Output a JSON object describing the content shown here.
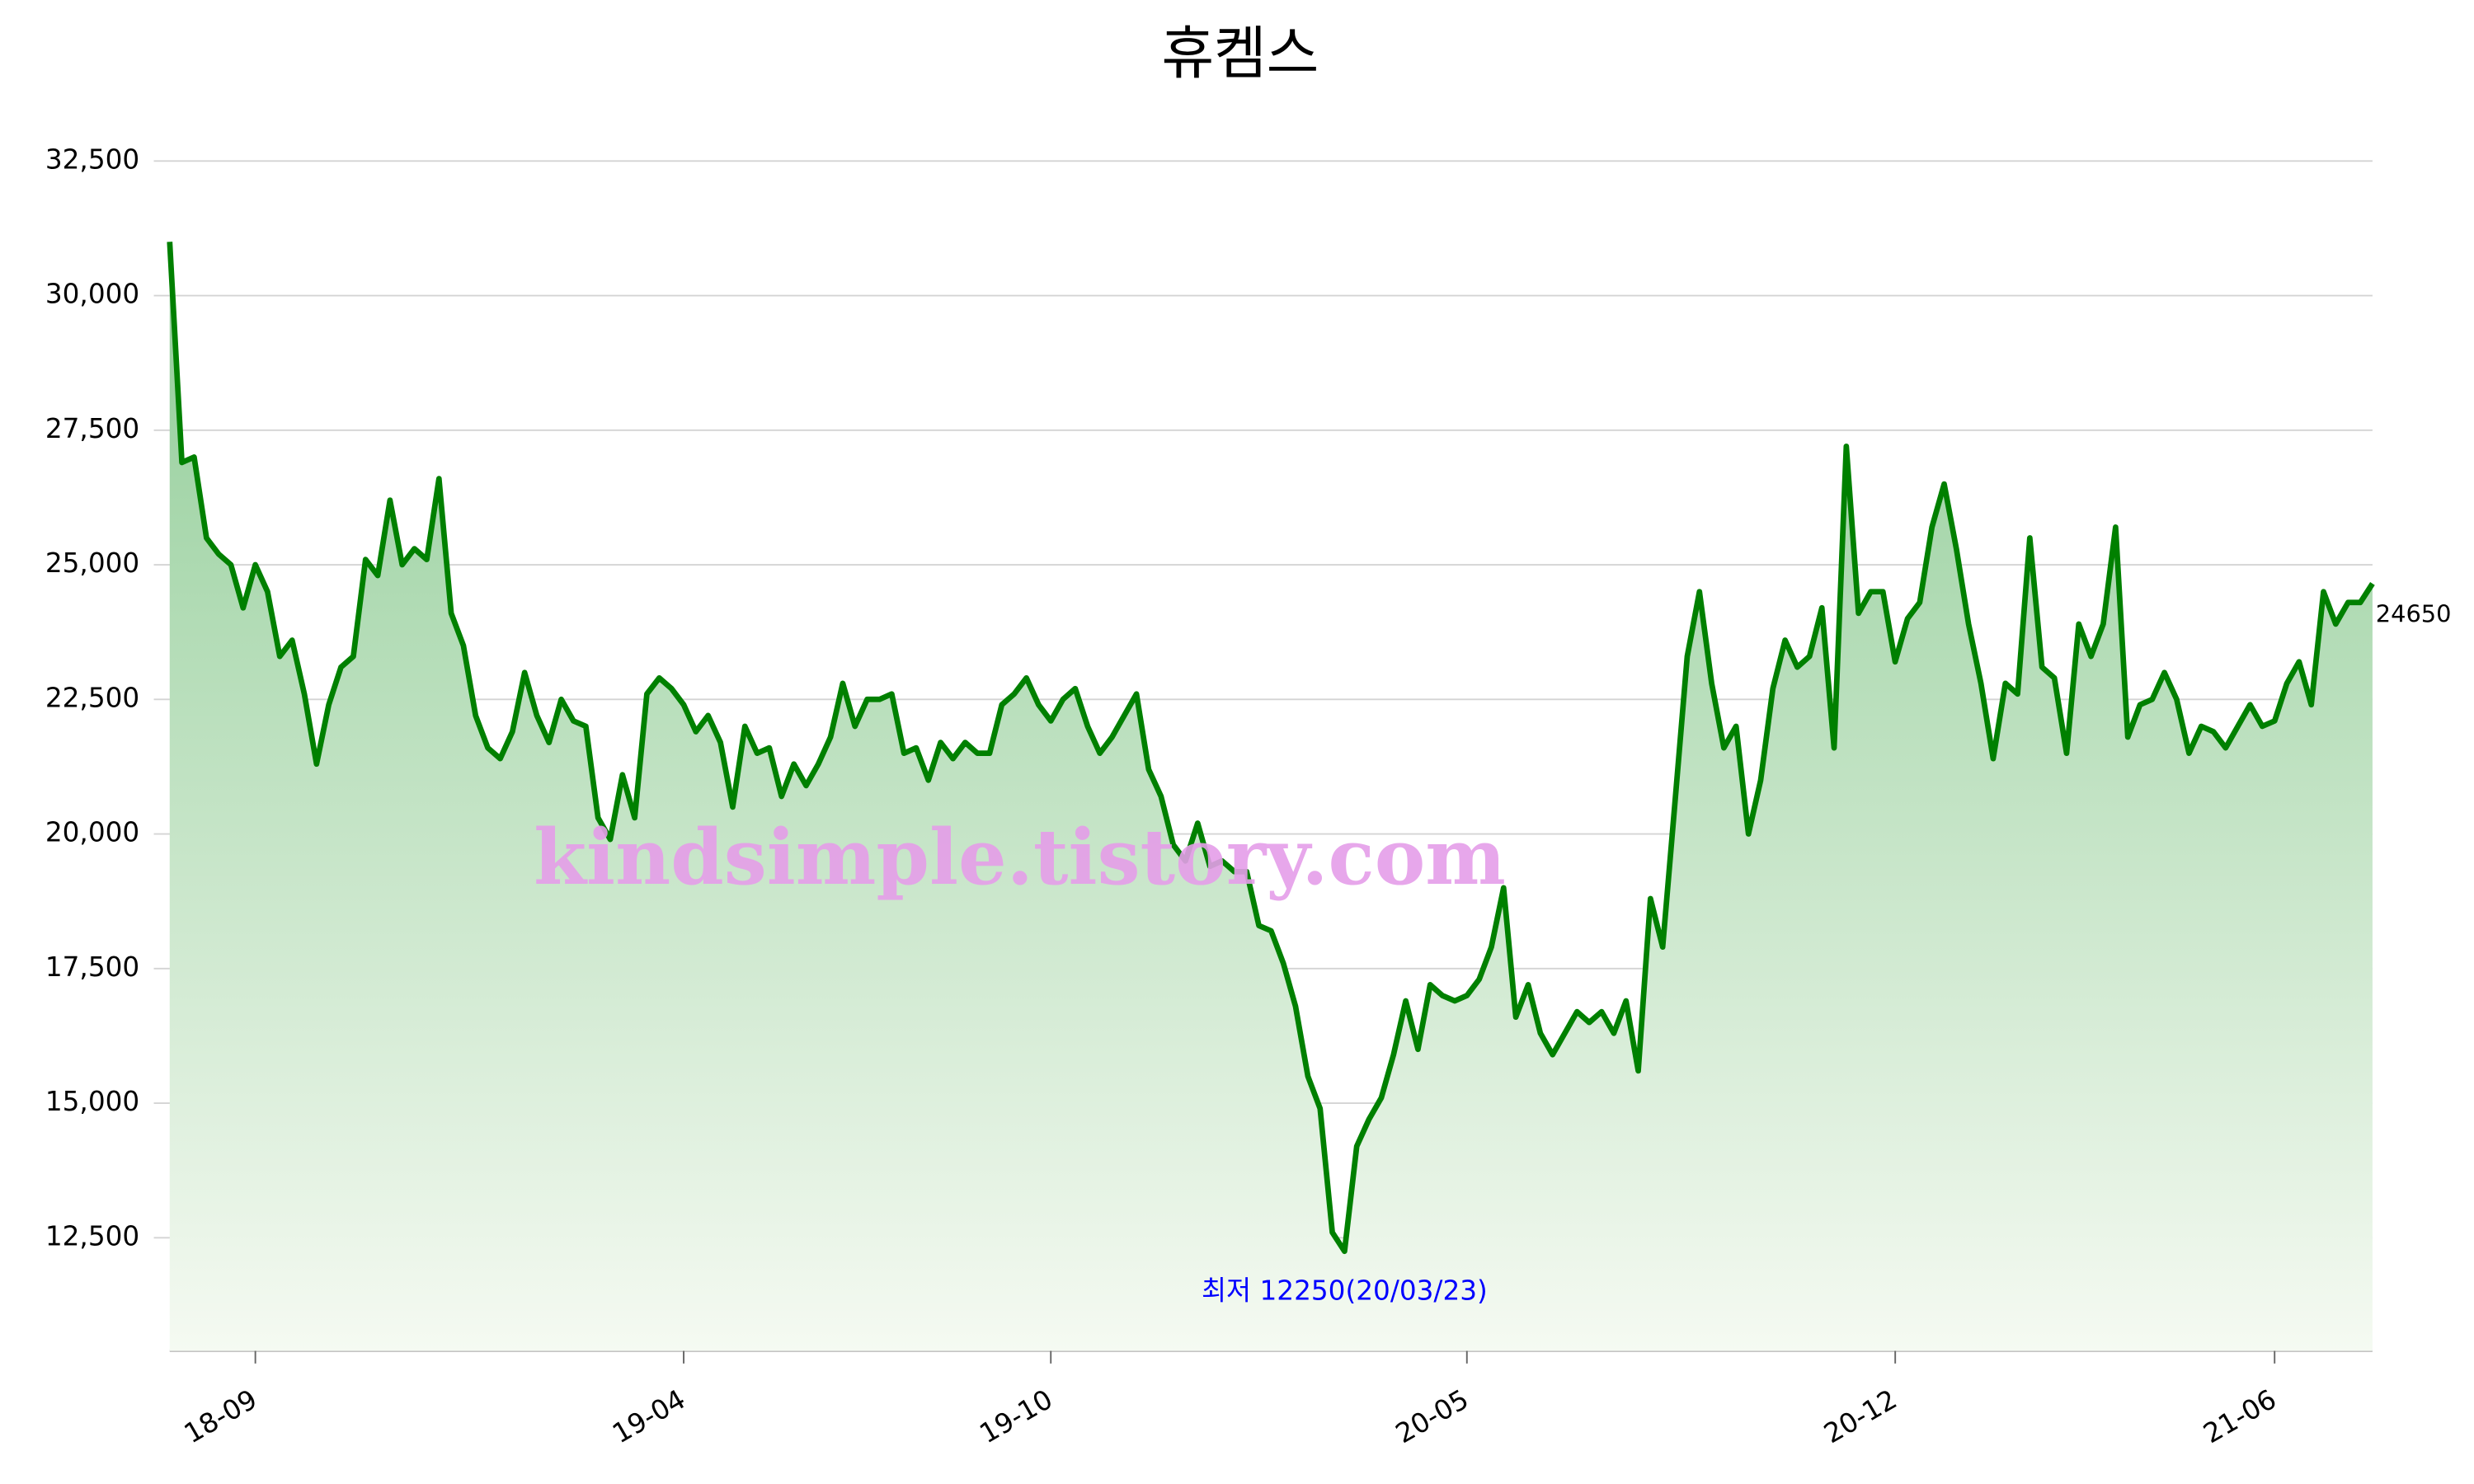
{
  "chart_data": {
    "type": "line",
    "title": "휴켐스",
    "x": [
      "18-08",
      "18-08",
      "18-08",
      "18-08",
      "18-08",
      "18-08",
      "18-08",
      "18-09",
      "18-09",
      "18-09",
      "18-09",
      "18-09",
      "18-10",
      "18-10",
      "18-10",
      "18-10",
      "18-10",
      "18-11",
      "18-11",
      "18-11",
      "18-11",
      "18-11",
      "18-12",
      "18-12",
      "18-12",
      "18-12",
      "18-12",
      "18-12",
      "19-01",
      "19-01",
      "19-01",
      "19-01",
      "19-02",
      "19-02",
      "19-02",
      "19-02",
      "19-02",
      "19-02",
      "19-03",
      "19-03",
      "19-03",
      "19-03",
      "19-04",
      "19-04",
      "19-04",
      "19-04",
      "19-04",
      "19-04",
      "19-05",
      "19-05",
      "19-05",
      "19-05",
      "19-05",
      "19-06",
      "19-06",
      "19-06",
      "19-06",
      "19-06",
      "19-07",
      "19-07",
      "19-07",
      "19-07",
      "19-08",
      "19-08",
      "19-08",
      "19-08",
      "19-09",
      "19-09",
      "19-09",
      "19-09",
      "19-09",
      "19-09",
      "19-10",
      "19-10",
      "19-10",
      "19-10",
      "19-11",
      "19-11",
      "19-11",
      "19-11",
      "19-12",
      "19-12",
      "19-12",
      "19-12",
      "19-12",
      "20-01",
      "20-01",
      "20-01",
      "20-01",
      "20-02",
      "20-02",
      "20-02",
      "20-02",
      "20-02",
      "20-02",
      "20-02",
      "20-03",
      "20-03",
      "20-03",
      "20-03",
      "20-03",
      "20-03",
      "20-04",
      "20-04",
      "20-04",
      "20-04",
      "20-05",
      "20-05",
      "20-05",
      "20-05",
      "20-06",
      "20-06",
      "20-06",
      "20-06",
      "20-07",
      "20-07",
      "20-07",
      "20-07",
      "20-07",
      "20-08",
      "20-08",
      "20-08",
      "20-08",
      "20-08",
      "20-08",
      "20-09",
      "20-09",
      "20-09",
      "20-09",
      "20-09",
      "20-09",
      "20-09",
      "20-10",
      "20-10",
      "20-10",
      "20-10",
      "20-10",
      "20-11",
      "20-11",
      "20-11",
      "20-11",
      "20-12",
      "20-12",
      "20-12",
      "20-12",
      "20-12",
      "21-01",
      "21-01",
      "21-01",
      "21-01",
      "21-01",
      "21-02",
      "21-02",
      "21-02",
      "21-02",
      "21-02",
      "21-02",
      "21-03",
      "21-03",
      "21-03",
      "21-03",
      "21-03",
      "21-04",
      "21-04",
      "21-04",
      "21-04",
      "21-04",
      "21-04",
      "21-05",
      "21-05",
      "21-05",
      "21-05",
      "21-06",
      "21-06",
      "21-06",
      "21-06",
      "21-06",
      "21-06",
      "21-06",
      "21-07",
      "21-07"
    ],
    "series": [
      {
        "color": "#008000",
        "values": [
          31000,
          26900,
          27000,
          25500,
          25200,
          25000,
          24200,
          25000,
          24500,
          23300,
          23600,
          22600,
          21300,
          22400,
          23100,
          23300,
          25100,
          24800,
          26200,
          25000,
          25300,
          25100,
          26600,
          24100,
          23500,
          22200,
          21600,
          21400,
          21900,
          23000,
          22200,
          21700,
          22500,
          22100,
          22000,
          20300,
          19900,
          21100,
          20300,
          22600,
          22900,
          22700,
          22400,
          21900,
          22200,
          21700,
          20500,
          22000,
          21500,
          21600,
          20700,
          21300,
          20900,
          21300,
          21800,
          22800,
          22000,
          22500,
          22500,
          22600,
          21500,
          21600,
          21000,
          21700,
          21400,
          21700,
          21500,
          21500,
          22400,
          22600,
          22900,
          22400,
          22100,
          22500,
          22700,
          22000,
          21500,
          21800,
          22200,
          22600,
          21200,
          20700,
          19800,
          19500,
          20200,
          19400,
          19500,
          19300,
          19300,
          18300,
          18200,
          17600,
          16800,
          15500,
          14900,
          12600,
          12250,
          14200,
          14700,
          15100,
          15900,
          16900,
          16000,
          17200,
          17000,
          16900,
          17000,
          17300,
          17900,
          19000,
          16600,
          17200,
          16300,
          15900,
          16300,
          16700,
          16500,
          16700,
          16300,
          16900,
          15600,
          18800,
          17900,
          20600,
          23300,
          24500,
          22800,
          21600,
          22000,
          20000,
          21000,
          22700,
          23600,
          23100,
          23300,
          24200,
          21600,
          27200,
          24100,
          24500,
          24500,
          23200,
          24000,
          24300,
          25700,
          26500,
          25300,
          23900,
          22800,
          21400,
          22800,
          22600,
          25500,
          23100,
          22900,
          21500,
          23900,
          23300,
          23900,
          25700,
          21800,
          22400,
          22500,
          23000,
          22500,
          21500,
          22000,
          21900,
          21600,
          22000,
          22400,
          22000,
          22100,
          22800,
          23200,
          22400,
          24500,
          23900,
          24300,
          24300,
          24650
        ]
      }
    ],
    "ylim": [
      10400,
      32900
    ],
    "yticks": [
      {
        "value": 12500,
        "label": "12,500"
      },
      {
        "value": 15000,
        "label": "15,000"
      },
      {
        "value": 17500,
        "label": "17,500"
      },
      {
        "value": 20000,
        "label": "20,000"
      },
      {
        "value": 22500,
        "label": "22,500"
      },
      {
        "value": 25000,
        "label": "25,000"
      },
      {
        "value": 27500,
        "label": "27,500"
      },
      {
        "value": 30000,
        "label": "30,000"
      },
      {
        "value": 32500,
        "label": "32,500"
      }
    ],
    "xticks": [
      "18-09",
      "19-04",
      "19-10",
      "20-05",
      "20-12",
      "21-06"
    ],
    "grid": true,
    "annotations": [
      {
        "text": "최저 12250(20/03/23)",
        "color": "#0000ff"
      }
    ],
    "watermark": "kindsimple.tistory.com"
  }
}
